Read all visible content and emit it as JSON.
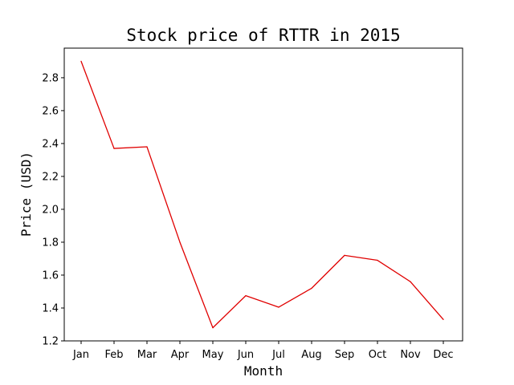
{
  "chart_data": {
    "type": "line",
    "title": "Stock price of RTTR in 2015",
    "xlabel": "Month",
    "ylabel": "Price (USD)",
    "categories": [
      "Jan",
      "Feb",
      "Mar",
      "Apr",
      "May",
      "Jun",
      "Jul",
      "Aug",
      "Sep",
      "Oct",
      "Nov",
      "Dec"
    ],
    "series": [
      {
        "values": [
          2.9,
          2.37,
          2.38,
          1.8,
          1.28,
          1.475,
          1.405,
          1.52,
          1.72,
          1.69,
          1.56,
          1.33
        ],
        "color": "#e00000"
      }
    ],
    "ylim": [
      1.2,
      2.98
    ],
    "yticks": [
      "1.2",
      "1.4",
      "1.6",
      "1.8",
      "2.0",
      "2.2",
      "2.4",
      "2.6",
      "2.8"
    ],
    "grid": false,
    "legend": "none"
  }
}
